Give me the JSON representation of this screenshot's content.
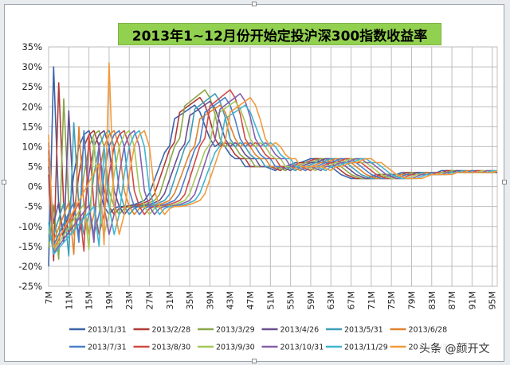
{
  "chart_data": {
    "type": "line",
    "title": "2013年1~12月份开始定投沪深300指数收益率",
    "xlabel": "",
    "ylabel": "",
    "ylim": [
      -0.25,
      0.35
    ],
    "yticks": [
      "35%",
      "30%",
      "25%",
      "20%",
      "15%",
      "10%",
      "5%",
      "0%",
      "-5%",
      "-10%",
      "-15%",
      "-20%",
      "-25%"
    ],
    "x": [
      7,
      8,
      9,
      10,
      11,
      12,
      13,
      14,
      15,
      16,
      17,
      18,
      19,
      20,
      21,
      22,
      23,
      24,
      25,
      26,
      27,
      28,
      29,
      30,
      31,
      32,
      33,
      34,
      35,
      36,
      37,
      38,
      39,
      40,
      41,
      42,
      43,
      44,
      45,
      46,
      47,
      48,
      49,
      50,
      51,
      52,
      53,
      54,
      55,
      56,
      57,
      58,
      59,
      60,
      61,
      62,
      63,
      64,
      65,
      66,
      67,
      68,
      69,
      70,
      71,
      72,
      73,
      74,
      75,
      76,
      77,
      78,
      79,
      80,
      81,
      82,
      83,
      84,
      85,
      86,
      87,
      88,
      89,
      90,
      91,
      92,
      93,
      94,
      95,
      96
    ],
    "xtick_labels": [
      "7M",
      "11M",
      "15M",
      "19M",
      "23M",
      "27M",
      "31M",
      "35M",
      "39M",
      "43M",
      "47M",
      "51M",
      "55M",
      "59M",
      "63M",
      "67M",
      "71M",
      "75M",
      "79M",
      "83M",
      "87M",
      "91M",
      "95M"
    ],
    "legend_position": "bottom",
    "grid": true,
    "base_series": {
      "pre": [
        -0.2,
        -0.15,
        -0.05,
        -0.12,
        -0.07,
        0.03,
        0.1,
        0.13,
        0.14,
        0.1,
        -0.01,
        -0.05,
        -0.07,
        -0.055,
        -0.05,
        -0.05,
        -0.048,
        -0.045,
        -0.04,
        -0.035,
        -0.02,
        0.02,
        0.06,
        0.1,
        0.12,
        0.2,
        0.21,
        0.22,
        0.23,
        0.24,
        0.22,
        0.18,
        0.12,
        0.1,
        0.11,
        0.1,
        0.08,
        0.07,
        0.07,
        0.05,
        0.05,
        0.05,
        0.05,
        0.05,
        0.045,
        0.04,
        0.05,
        0.05,
        0.055,
        0.06,
        0.06,
        0.065,
        0.07,
        0.07,
        0.06,
        0.06,
        0.05,
        0.04,
        0.03,
        0.025,
        0.02,
        0.02,
        0.02,
        0.02,
        0.025,
        0.03,
        0.03,
        0.03,
        0.03,
        0.03,
        0.035,
        0.035,
        0.035,
        0.035,
        0.035,
        0.035,
        0.035,
        0.035
      ],
      "post": [
        0.04,
        0.04,
        0.035,
        0.035,
        0.035,
        0.035,
        0.035,
        0.035,
        0.035,
        0.035,
        0.035,
        0.035,
        0.035,
        0.035,
        0.035,
        0.035,
        0.035,
        0.035,
        0.035,
        0.035,
        0.035,
        0.035,
        0.035,
        0.035,
        0.035,
        0.035,
        0.035,
        0.035,
        0.035,
        0.035
      ]
    },
    "series": [
      {
        "name": "2013/1/31",
        "color": "#3b64a8",
        "peak": 0.3
      },
      {
        "name": "2013/2/28",
        "color": "#b03b36",
        "peak": 0.26
      },
      {
        "name": "2013/3/29",
        "color": "#8aa64a",
        "peak": 0.22
      },
      {
        "name": "2013/4/26",
        "color": "#6b4f90",
        "peak": 0.19
      },
      {
        "name": "2013/5/31",
        "color": "#3c9fb7",
        "peak": 0.16
      },
      {
        "name": "2013/6/28",
        "color": "#e0822f",
        "peak": 0.15
      },
      {
        "name": "2013/7/31",
        "color": "#4a80c8",
        "peak": 0.14
      },
      {
        "name": "2013/8/30",
        "color": "#cf4b45",
        "peak": 0.13
      },
      {
        "name": "2013/9/30",
        "color": "#a4c75a",
        "peak": 0.12
      },
      {
        "name": "2013/10/31",
        "color": "#8460ac",
        "peak": 0.11
      },
      {
        "name": "2013/11/29",
        "color": "#41b6cf",
        "peak": 0.1
      },
      {
        "name": "2013/12/31",
        "color": "#f39a3c",
        "peak": 0.31
      }
    ]
  },
  "watermark": "头条 @颜开文"
}
